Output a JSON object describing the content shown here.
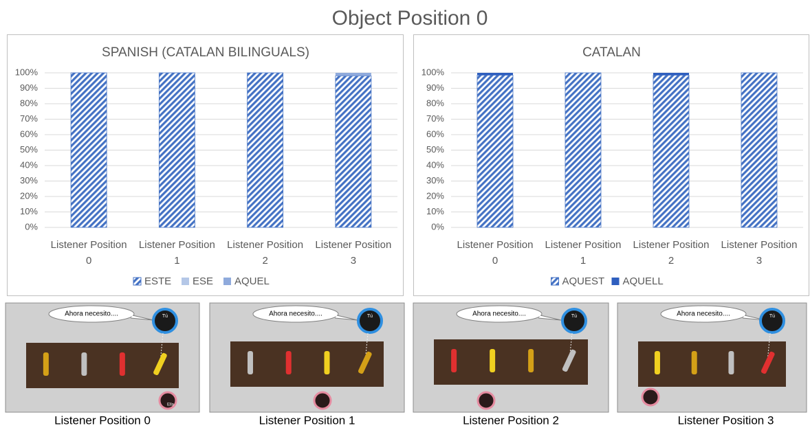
{
  "title": "Object Position 0",
  "chart_data": [
    {
      "type": "bar",
      "stacked": true,
      "title": "SPANISH (CATALAN BILINGUALS)",
      "categories": [
        "Listener Position 0",
        "Listener Position 1",
        "Listener Position 2",
        "Listener Position 3"
      ],
      "series": [
        {
          "name": "ESTE",
          "color": "#4472c4",
          "hatch": true,
          "values": [
            100,
            100,
            100,
            98
          ]
        },
        {
          "name": "ESE",
          "color": "#b4c7e7",
          "hatch": false,
          "values": [
            0,
            0,
            0,
            0
          ]
        },
        {
          "name": "AQUEL",
          "color": "#8faadc",
          "hatch": false,
          "values": [
            0,
            0,
            0,
            2
          ]
        }
      ],
      "ylim": [
        0,
        100
      ],
      "yticks": [
        {
          "value": 0,
          "label": "0%"
        },
        {
          "value": 10,
          "label": "10%"
        },
        {
          "value": 20,
          "label": "20%"
        },
        {
          "value": 30,
          "label": "30%"
        },
        {
          "value": 40,
          "label": "40%"
        },
        {
          "value": 50,
          "label": "50%"
        },
        {
          "value": 60,
          "label": "60%"
        },
        {
          "value": 70,
          "label": "70%"
        },
        {
          "value": 80,
          "label": "80%"
        },
        {
          "value": 90,
          "label": "90%"
        },
        {
          "value": 100,
          "label": "100%"
        }
      ],
      "grid": true,
      "legend": "bottom"
    },
    {
      "type": "bar",
      "stacked": true,
      "title": "CATALAN",
      "categories": [
        "Listener Position 0",
        "Listener Position 1",
        "Listener Position 2",
        "Listener Position 3"
      ],
      "series": [
        {
          "name": "AQUEST",
          "color": "#4472c4",
          "hatch": true,
          "values": [
            98.5,
            100,
            98.5,
            100
          ]
        },
        {
          "name": "AQUELL",
          "color": "#2f5fbf",
          "hatch": false,
          "values": [
            1.5,
            0,
            1.5,
            0
          ]
        }
      ],
      "ylim": [
        0,
        100
      ],
      "yticks": [
        {
          "value": 0,
          "label": "0%"
        },
        {
          "value": 10,
          "label": "10%"
        },
        {
          "value": 20,
          "label": "20%"
        },
        {
          "value": 30,
          "label": "30%"
        },
        {
          "value": 40,
          "label": "40%"
        },
        {
          "value": 50,
          "label": "50%"
        },
        {
          "value": 60,
          "label": "60%"
        },
        {
          "value": 70,
          "label": "70%"
        },
        {
          "value": 80,
          "label": "80%"
        },
        {
          "value": 90,
          "label": "90%"
        },
        {
          "value": 100,
          "label": "100%"
        }
      ],
      "grid": true,
      "legend": "bottom"
    }
  ],
  "scenes": [
    {
      "bubble": "Ahora necesito....",
      "speaker": "Tú",
      "listener": "Ella",
      "caption": "Listener Position 0"
    },
    {
      "bubble": "Ahora necesito....",
      "speaker": "Tú",
      "caption": "Listener Position 1"
    },
    {
      "bubble": "Ahora necesito....",
      "speaker": "Tú",
      "caption": "Listener Position 2"
    },
    {
      "bubble": "Ahora necesito....",
      "speaker": "Tú",
      "caption": "Listener Position 3"
    }
  ]
}
